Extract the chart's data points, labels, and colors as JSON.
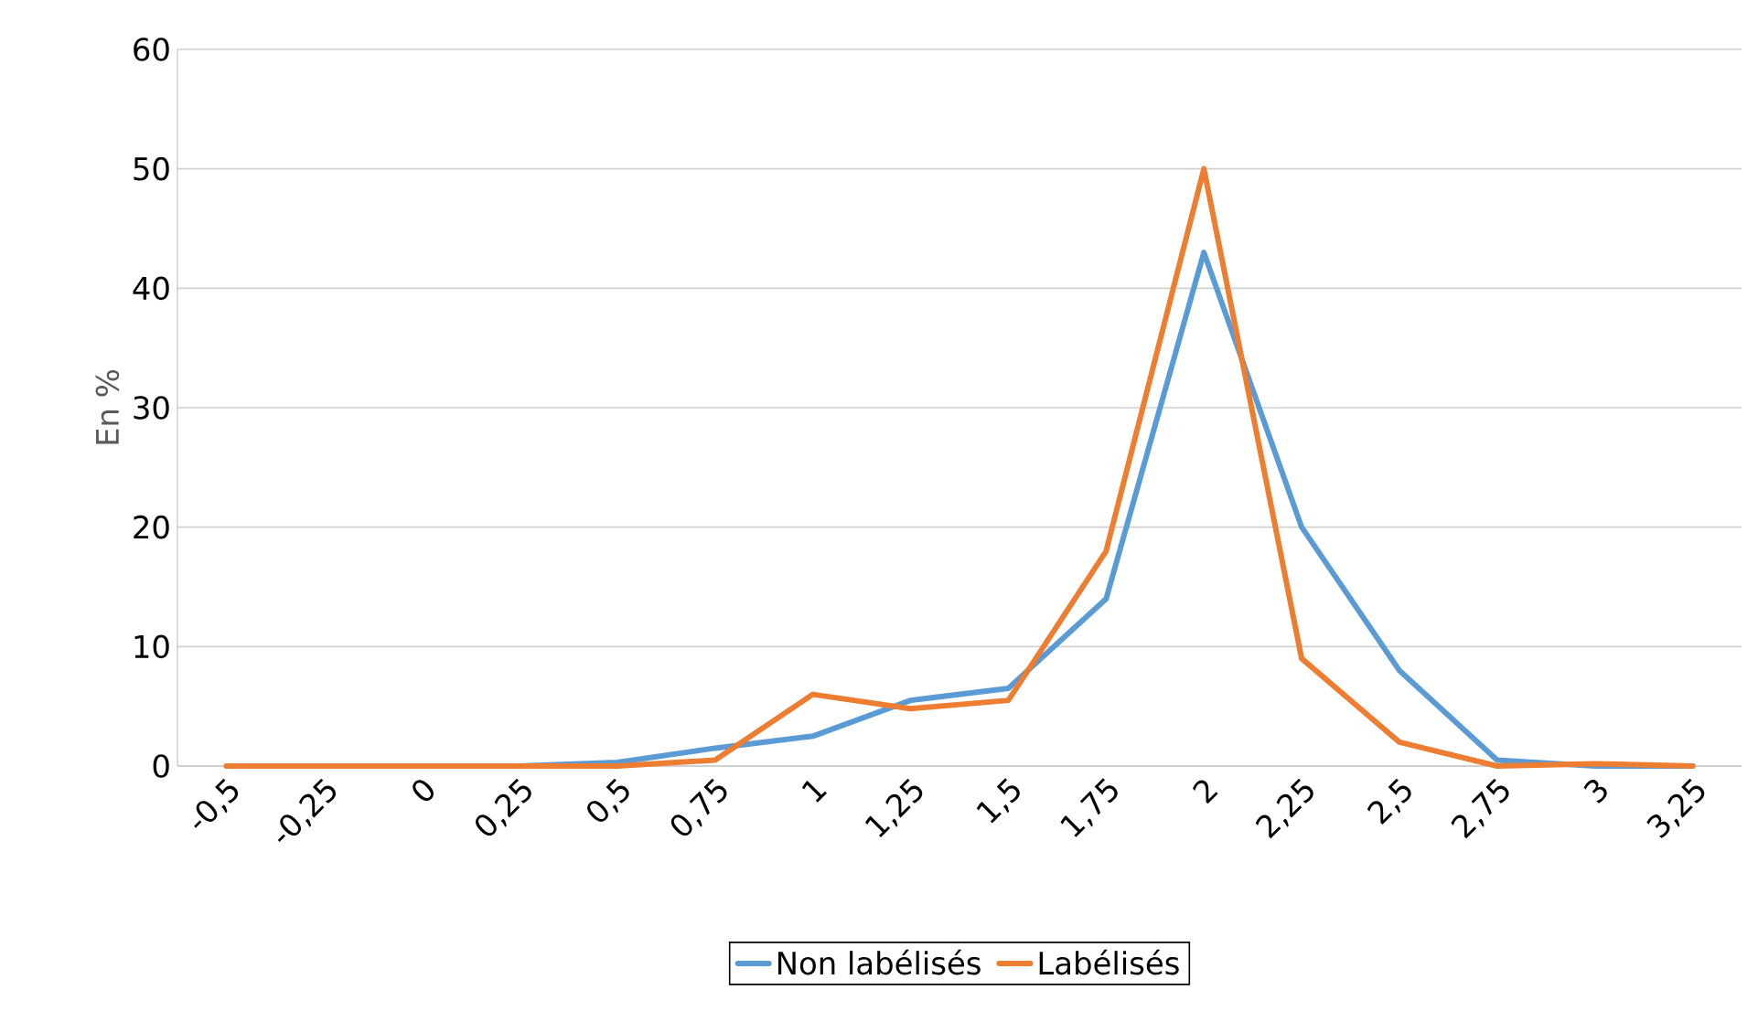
{
  "chart_data": {
    "type": "line",
    "ylabel": "En %",
    "categories": [
      "-0,5",
      "-0,25",
      "0",
      "0,25",
      "0,5",
      "0,75",
      "1",
      "1,25",
      "1,5",
      "1,75",
      "2",
      "2,25",
      "2,5",
      "2,75",
      "3",
      "3,25"
    ],
    "series": [
      {
        "name": "Non labélisés",
        "color": "#5b9bd5",
        "values": [
          null,
          null,
          null,
          0,
          0.3,
          1.5,
          2.5,
          5.5,
          6.5,
          14,
          43,
          20,
          8,
          0.5,
          0,
          0
        ]
      },
      {
        "name": "Labélisés",
        "color": "#ed7d31",
        "values": [
          0,
          0,
          0,
          0,
          0,
          0.5,
          6,
          4.8,
          5.5,
          18,
          50,
          9,
          2,
          0,
          0.2,
          0
        ]
      }
    ],
    "ylim": [
      0,
      60
    ],
    "yticks": [
      0,
      10,
      20,
      30,
      40,
      50,
      60
    ],
    "grid": "y",
    "legend": "bottom",
    "marker": "none",
    "line_style": "solid"
  }
}
